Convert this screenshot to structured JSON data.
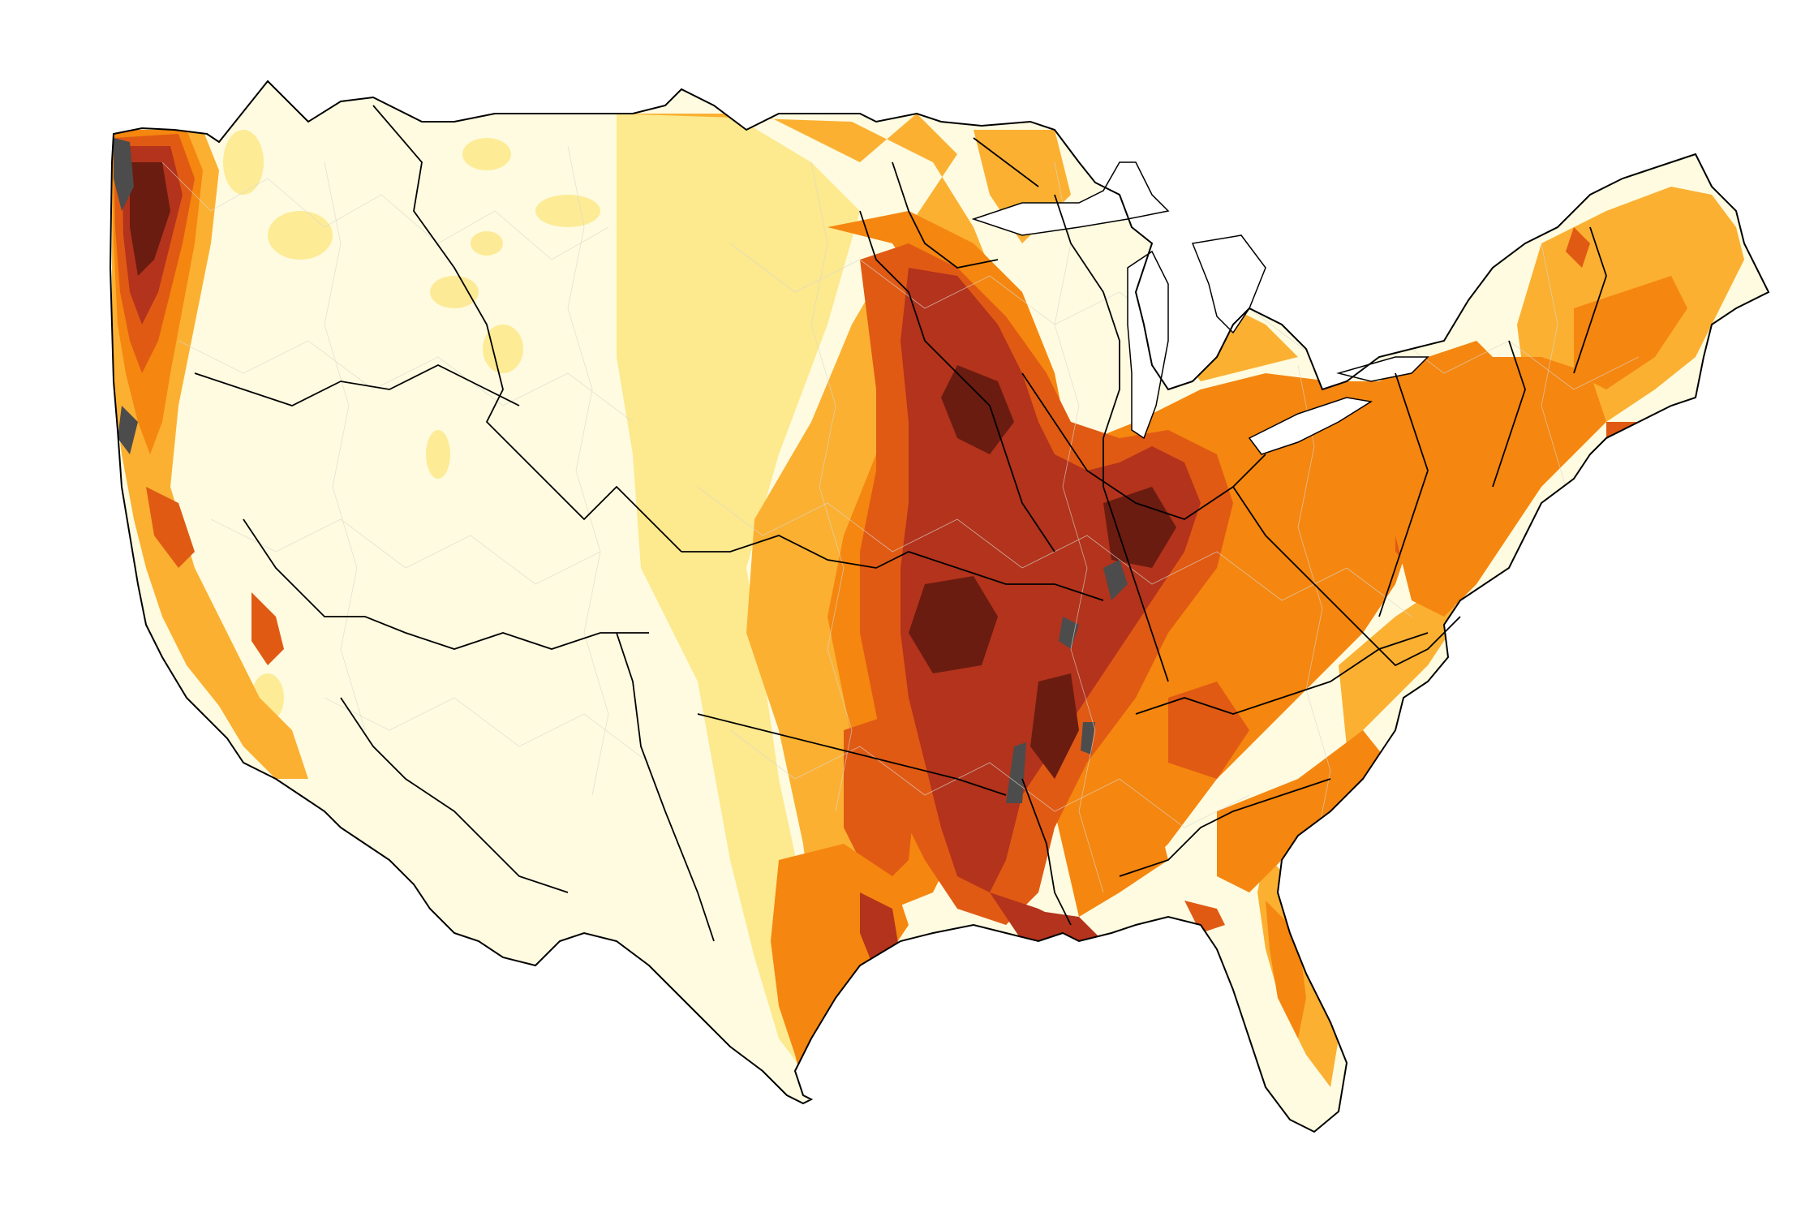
{
  "map": {
    "type": "choropleth",
    "extent": "contiguous-united-states",
    "unit_type": "watersheds",
    "legend": null,
    "class_colors": [
      "#fefbe0",
      "#fde98e",
      "#fbb032",
      "#f5860f",
      "#e05a14",
      "#b3331c",
      "#6b1c10"
    ],
    "no_data_color": "#4c4c4c",
    "water_color": "#ffffff",
    "boundary_color": "#000000",
    "sub_boundary_color": "#d8d8d0"
  }
}
